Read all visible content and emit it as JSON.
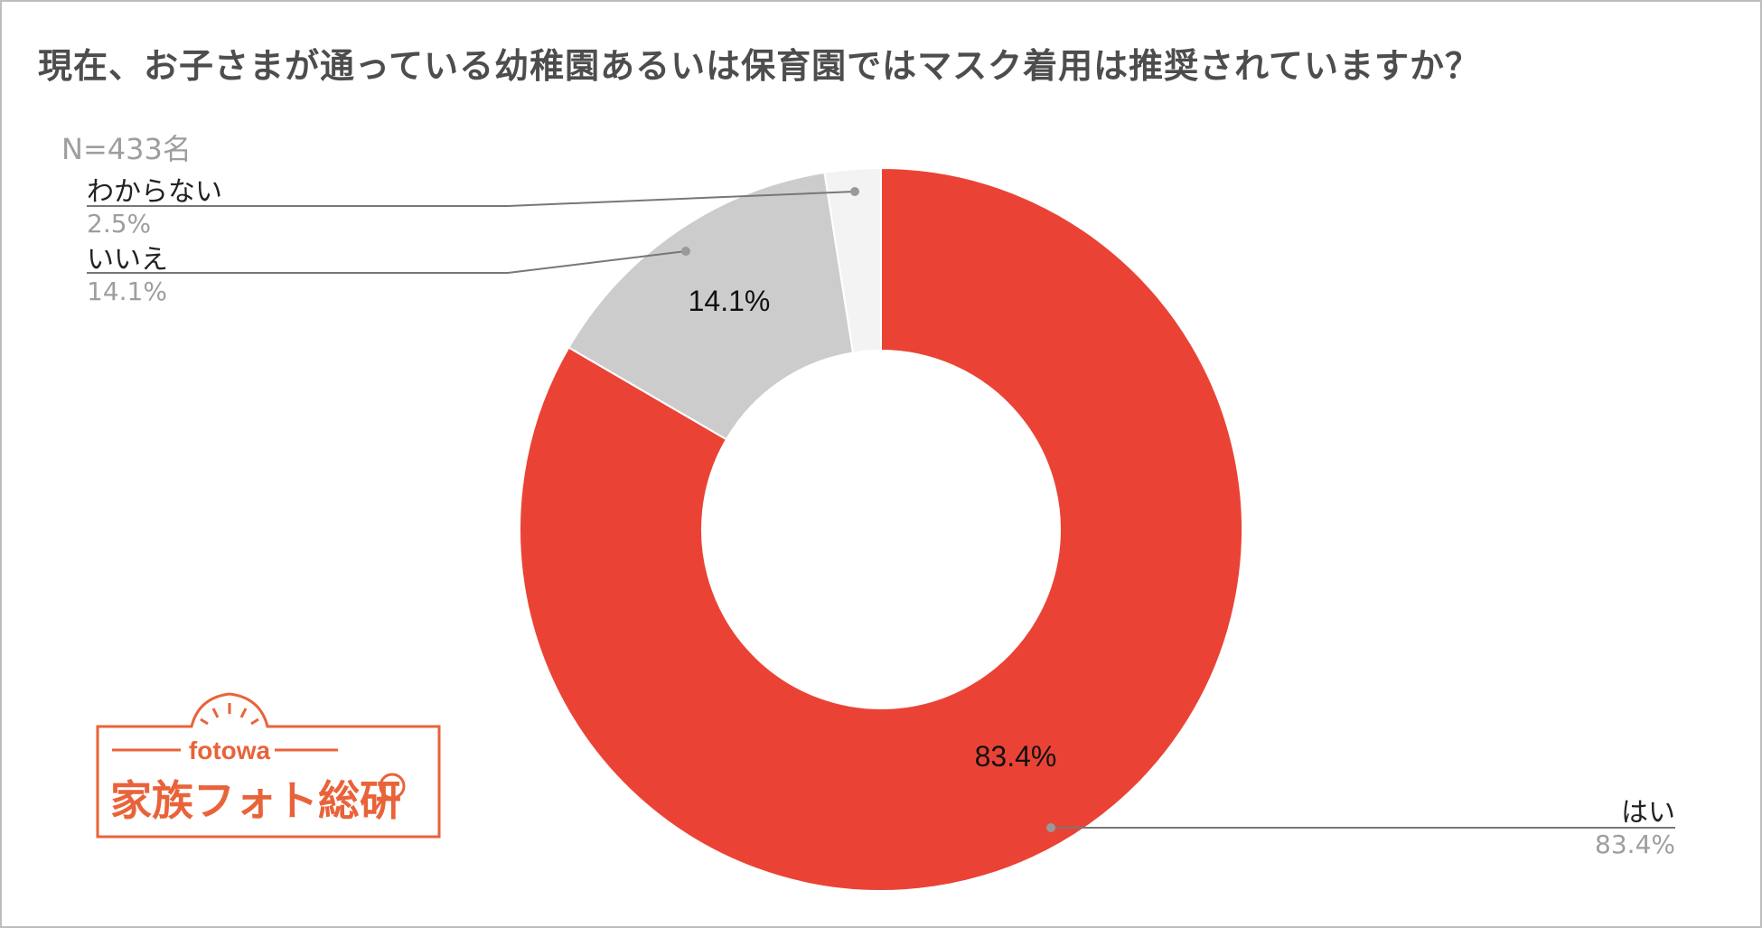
{
  "title": "現在、お子さまが通っている幼稚園あるいは保育園ではマスク着用は推奨されていますか？",
  "note": "N=433名",
  "logo": {
    "brand": "fotowa",
    "name": "家族フォト総研",
    "color": "#E9633A"
  },
  "chart_data": {
    "type": "pie",
    "donut": true,
    "slices": [
      {
        "label": "はい",
        "value": 83.4,
        "display": "83.4%",
        "color": "#EA4335"
      },
      {
        "label": "いいえ",
        "value": 14.1,
        "display": "14.1%",
        "color": "#CCCCCC"
      },
      {
        "label": "わからない",
        "value": 2.5,
        "display": "2.5%",
        "color": "#F3F3F3"
      }
    ]
  }
}
